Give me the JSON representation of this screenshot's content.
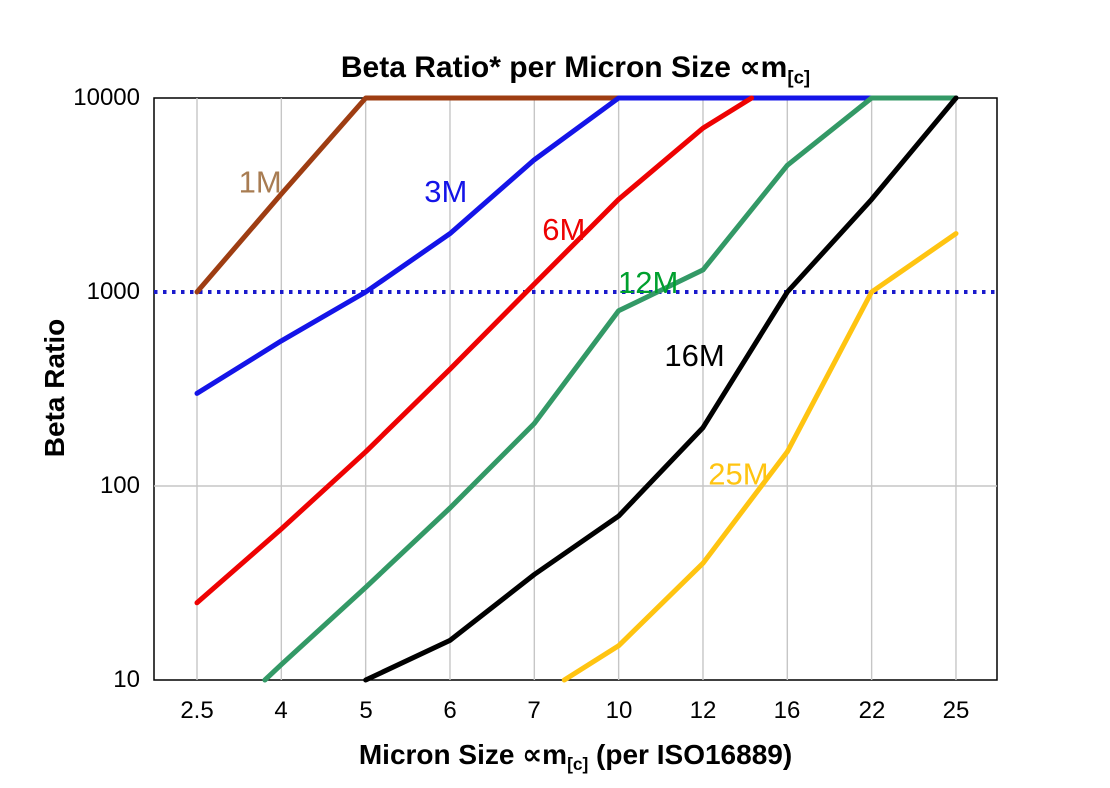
{
  "title": {
    "prefix": "Beta Ratio* per Micron Size ",
    "symbol": "∝m",
    "subscript": "[c]"
  },
  "x_axis": {
    "prefix": "Micron Size ",
    "symbol": "∝m",
    "subscript": "[c]",
    "suffix": " (per ISO16889)",
    "ticks": [
      "2.5",
      "4",
      "5",
      "6",
      "7",
      "10",
      "12",
      "16",
      "22",
      "25"
    ]
  },
  "y_axis": {
    "label": "Beta Ratio",
    "ticks": [
      "10",
      "100",
      "1000",
      "10000"
    ]
  },
  "chart_data": {
    "type": "line",
    "title": "Beta Ratio* per Micron Size ∝m[c]",
    "xlabel": "Micron Size ∝m[c] (per ISO16889)",
    "ylabel": "Beta Ratio",
    "x_scale": "categorical",
    "y_scale": "log",
    "ylim": [
      10,
      10000
    ],
    "y_ticks": [
      10,
      100,
      1000,
      10000
    ],
    "categories": [
      "2.5",
      "4",
      "5",
      "6",
      "7",
      "10",
      "12",
      "16",
      "22",
      "25"
    ],
    "grid": {
      "vertical": true,
      "horizontal_at": [
        100
      ],
      "color": "#C6C6C6"
    },
    "threshold_line": {
      "value": 1000,
      "style": "dotted",
      "color": "#1A1ACC"
    },
    "legend_position": "inline-labels",
    "series": [
      {
        "name": "1M",
        "color": "#9E3D12",
        "label_color": "#A87C52",
        "values": [
          1000,
          3200,
          10000,
          10000,
          10000,
          10000,
          10000,
          10000,
          10000,
          10000
        ],
        "label_at": {
          "x": 0.75,
          "y": 3700
        }
      },
      {
        "name": "3M",
        "color": "#1414E8",
        "label_color": "#1414E8",
        "values": [
          300,
          560,
          1000,
          2000,
          4800,
          10000,
          10000,
          10000,
          10000,
          10000
        ],
        "label_at": {
          "x": 2.95,
          "y": 3300
        }
      },
      {
        "name": "6M",
        "color": "#EE0202",
        "label_color": "#EE0202",
        "values": [
          25,
          60,
          150,
          400,
          1100,
          3000,
          7000,
          13000,
          null,
          null
        ],
        "label_at": {
          "x": 4.35,
          "y": 2100
        }
      },
      {
        "name": "12M",
        "color": "#339966",
        "label_color": "#00A02E",
        "values": [
          4.7,
          12,
          30,
          77,
          210,
          800,
          1300,
          4500,
          10000,
          10000
        ],
        "label_at": {
          "x": 5.35,
          "y": 1120
        }
      },
      {
        "name": "16M",
        "color": "#000000",
        "label_color": "#000000",
        "values": [
          null,
          null,
          10,
          16,
          35,
          70,
          200,
          1000,
          3000,
          10000
        ],
        "label_at": {
          "x": 5.9,
          "y": 470
        }
      },
      {
        "name": "25M",
        "color": "#FFC411",
        "label_color": "#FFC411",
        "values": [
          null,
          null,
          null,
          null,
          8,
          15,
          40,
          150,
          1000,
          2000
        ],
        "label_at": {
          "x": 6.42,
          "y": 115
        }
      }
    ]
  }
}
